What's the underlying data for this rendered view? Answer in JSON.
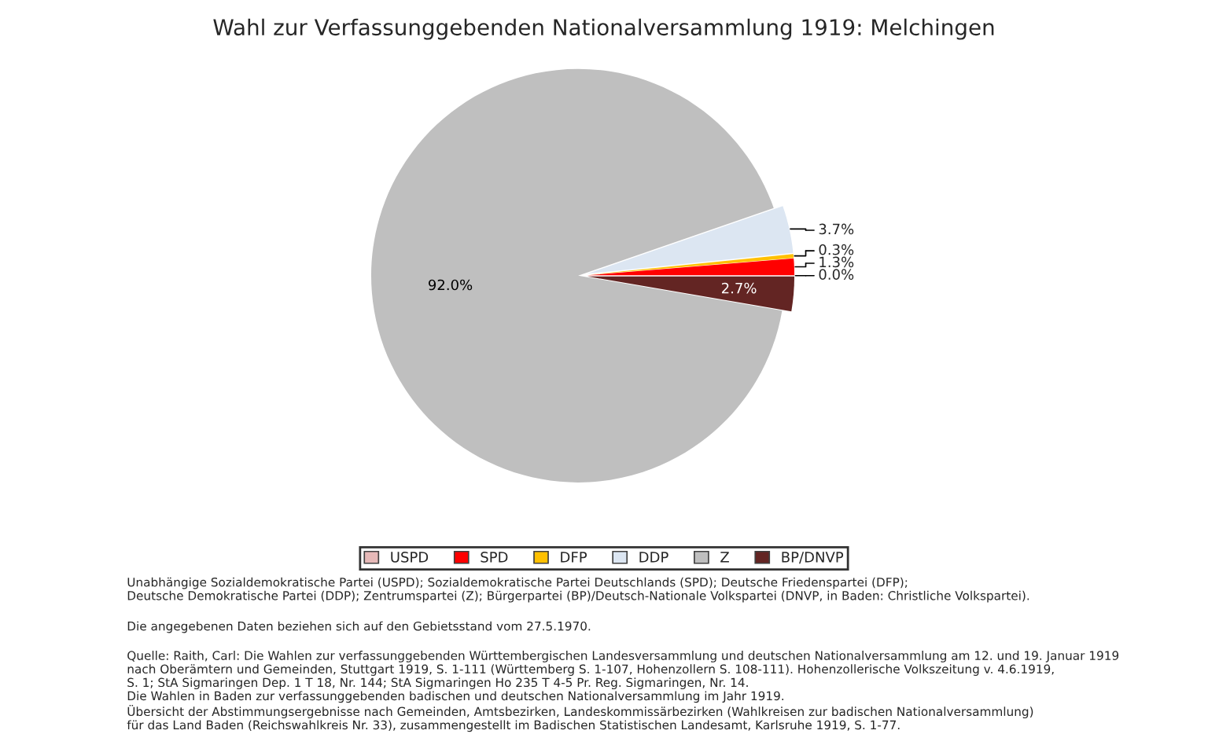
{
  "chart_data": {
    "type": "pie",
    "title": "Wahl zur Verfassunggebenden Nationalversammlung 1919: Melchingen",
    "categories": [
      "USPD",
      "SPD",
      "DFP",
      "DDP",
      "Z",
      "BP/DNVP"
    ],
    "values": [
      0.0,
      1.3,
      0.3,
      3.7,
      92.0,
      2.7
    ],
    "colors": [
      "#e6b9b8",
      "#ff0000",
      "#ffc000",
      "#dce6f2",
      "#bfbfbf",
      "#632523"
    ],
    "value_labels": [
      "0.0%",
      "1.3%",
      "0.3%",
      "3.7%",
      "92.0%",
      "2.7%"
    ],
    "legend": "bottom",
    "annotations": [
      "Unabhängige Sozialdemokratische Partei (USPD); Sozialdemokratische Partei Deutschlands (SPD); Deutsche Friedenspartei (DFP);\nDeutsche Demokratische Partei (DDP); Zentrumspartei (Z); Bürgerpartei (BP)/Deutsch-Nationale Volkspartei (DNVP, in Baden: Christliche Volkspartei).",
      "Die angegebenen Daten beziehen sich auf den Gebietsstand vom 27.5.1970.",
      "Quelle: Raith, Carl: Die Wahlen zur verfassunggebenden Württembergischen Landesversammlung und deutschen Nationalversammlung am 12. und 19. Januar 1919\nnach Oberämtern und Gemeinden, Stuttgart 1919, S. 1-111 (Württemberg S. 1-107, Hohenzollern S. 108-111). Hohenzollerische Volkszeitung v. 4.6.1919,\nS. 1; StA Sigmaringen Dep. 1 T 18, Nr. 144; StA Sigmaringen Ho 235 T 4-5 Pr. Reg. Sigmaringen, Nr. 14.\nDie Wahlen in Baden zur verfassunggebenden badischen und deutschen Nationalversammlung im Jahr 1919.\nÜbersicht der Abstimmungsergebnisse nach Gemeinden, Amtsbezirken, Landeskommissärbezirken (Wahlkreisen zur badischen Nationalversammlung)\nfür das Land Baden (Reichswahlkreis Nr. 33), zusammengestellt im Badischen Statistischen Landesamt, Karlsruhe 1919, S. 1-77."
    ]
  }
}
